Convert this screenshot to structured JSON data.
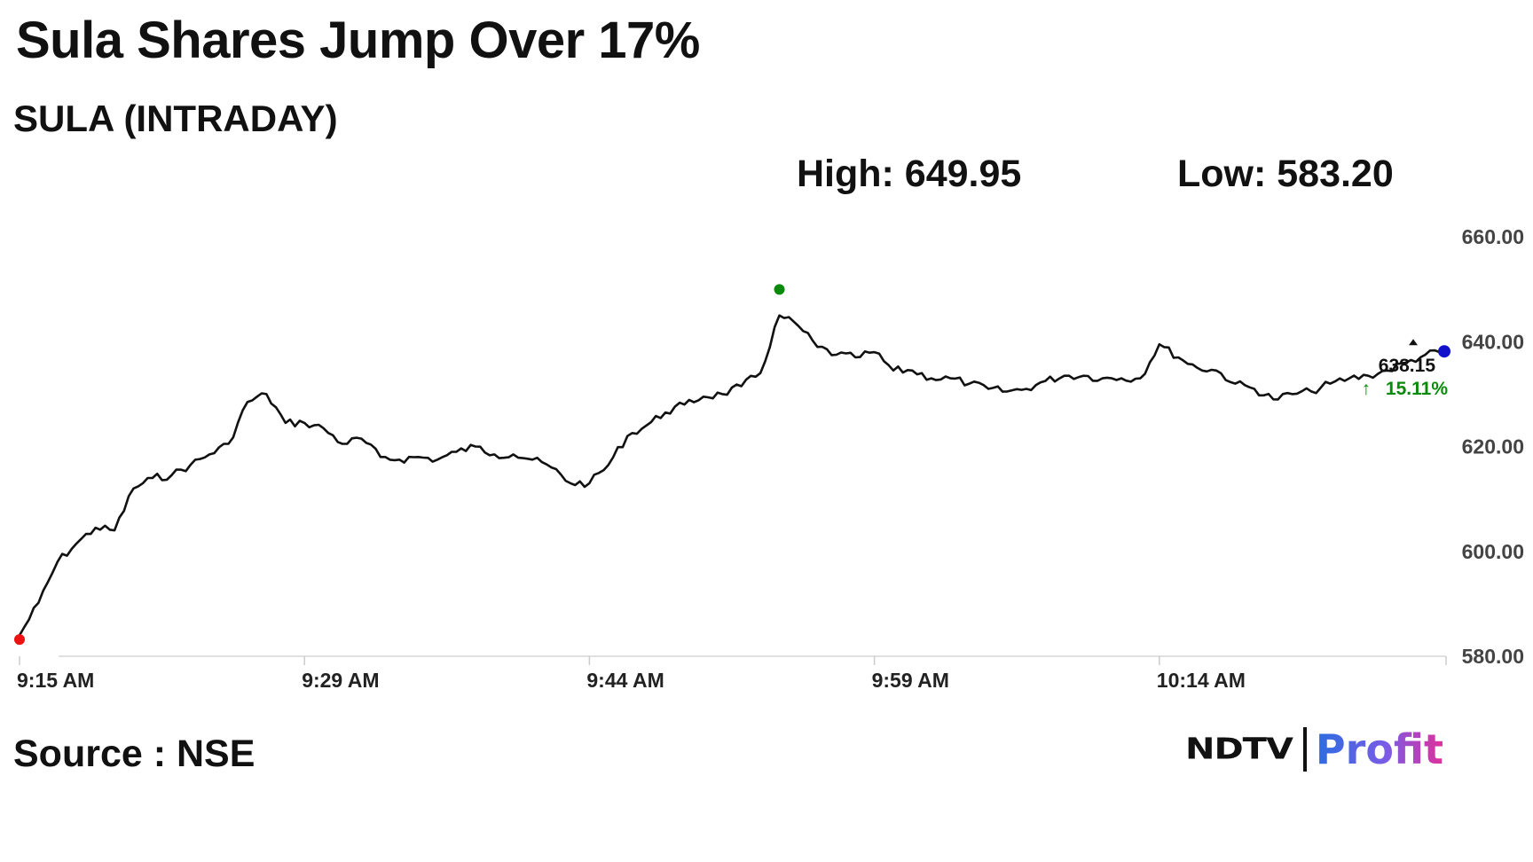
{
  "headline": "Sula Shares Jump Over 17%",
  "chart_title": "SULA (INTRADAY)",
  "stats": {
    "high_text": "High: 649.95",
    "low_text": "Low: 583.20"
  },
  "source": "Source : NSE",
  "brand": {
    "ndtv": "NDTV",
    "profit": "Profit"
  },
  "colors": {
    "line": "#111111",
    "start_marker": "#ee1111",
    "high_marker": "#0a8a0a",
    "last_marker": "#1111cc",
    "change_text": "#0a8a0a"
  },
  "chart_data": {
    "type": "line",
    "title": "SULA (INTRADAY)",
    "xlabel": "",
    "ylabel": "",
    "ylim": [
      580,
      660
    ],
    "xlim_minutes_after_open": [
      0,
      75
    ],
    "y_ticks": [
      {
        "value": 580,
        "label": "580.00"
      },
      {
        "value": 600,
        "label": "600.00"
      },
      {
        "value": 620,
        "label": "620.00"
      },
      {
        "value": 640,
        "label": "640.00"
      },
      {
        "value": 660,
        "label": "660.00"
      }
    ],
    "x_ticks": [
      {
        "time": "9:15",
        "label": "9:15 AM"
      },
      {
        "time": "9:30",
        "label": "9:29 AM"
      },
      {
        "time": "9:45",
        "label": "9:44 AM"
      },
      {
        "time": "10:00",
        "label": "9:59 AM"
      },
      {
        "time": "10:15",
        "label": "10:14 AM"
      }
    ],
    "grid": false,
    "legend": "none",
    "series": [
      {
        "points": [
          [
            "9:15",
            584.0
          ],
          [
            "9:16",
            590.2
          ],
          [
            "9:17",
            598.0
          ],
          [
            "9:18",
            601.5
          ],
          [
            "9:19",
            604.5
          ],
          [
            "9:20",
            604.0
          ],
          [
            "9:21",
            612.0
          ],
          [
            "9:22",
            614.0
          ],
          [
            "9:23",
            614.5
          ],
          [
            "9:24",
            616.5
          ],
          [
            "9:25",
            618.5
          ],
          [
            "9:26",
            620.5
          ],
          [
            "9:27",
            628.5
          ],
          [
            "9:28",
            630.0
          ],
          [
            "9:29",
            624.5
          ],
          [
            "9:30",
            624.5
          ],
          [
            "9:31",
            623.5
          ],
          [
            "9:32",
            620.5
          ],
          [
            "9:33",
            621.5
          ],
          [
            "9:34",
            618.0
          ],
          [
            "9:35",
            617.5
          ],
          [
            "9:36",
            618.0
          ],
          [
            "9:37",
            617.5
          ],
          [
            "9:38",
            619.0
          ],
          [
            "9:39",
            620.0
          ],
          [
            "9:40",
            618.5
          ],
          [
            "9:41",
            618.5
          ],
          [
            "9:42",
            617.5
          ],
          [
            "9:43",
            616.0
          ],
          [
            "9:44",
            613.0
          ],
          [
            "9:45",
            613.0
          ],
          [
            "9:46",
            616.5
          ],
          [
            "9:47",
            622.0
          ],
          [
            "9:48",
            624.0
          ],
          [
            "9:49",
            626.5
          ],
          [
            "9:50",
            628.0
          ],
          [
            "9:51",
            629.5
          ],
          [
            "9:52",
            630.0
          ],
          [
            "9:53",
            631.5
          ],
          [
            "9:54",
            634.0
          ],
          [
            "9:55",
            645.0
          ],
          [
            "9:56",
            643.0
          ],
          [
            "9:57",
            639.0
          ],
          [
            "9:58",
            637.5
          ],
          [
            "9:59",
            637.0
          ],
          [
            "10:00",
            638.0
          ],
          [
            "10:01",
            634.5
          ],
          [
            "10:02",
            634.5
          ],
          [
            "10:03",
            633.0
          ],
          [
            "10:04",
            633.0
          ],
          [
            "10:05",
            632.0
          ],
          [
            "10:06",
            631.0
          ],
          [
            "10:07",
            630.5
          ],
          [
            "10:08",
            631.0
          ],
          [
            "10:09",
            632.5
          ],
          [
            "10:10",
            633.5
          ],
          [
            "10:11",
            633.5
          ],
          [
            "10:12",
            633.0
          ],
          [
            "10:13",
            633.0
          ],
          [
            "10:14",
            633.0
          ],
          [
            "10:15",
            639.5
          ],
          [
            "10:16",
            637.0
          ],
          [
            "10:17",
            635.0
          ],
          [
            "10:18",
            634.5
          ],
          [
            "10:19",
            632.0
          ],
          [
            "10:20",
            631.0
          ],
          [
            "10:21",
            629.0
          ],
          [
            "10:22",
            630.0
          ],
          [
            "10:23",
            630.5
          ],
          [
            "10:24",
            632.0
          ],
          [
            "10:25",
            633.0
          ],
          [
            "10:26",
            633.5
          ],
          [
            "10:27",
            634.5
          ],
          [
            "10:28",
            636.0
          ],
          [
            "10:29",
            637.5
          ],
          [
            "10:30",
            638.15
          ]
        ]
      }
    ],
    "markers": {
      "open": {
        "time": "9:15",
        "value": 583.2
      },
      "high": {
        "time": "9:55",
        "value": 649.95
      },
      "last": {
        "time": "10:30",
        "value": 638.15
      }
    },
    "last_price_label": "638.15",
    "change_label": "15.11%"
  }
}
